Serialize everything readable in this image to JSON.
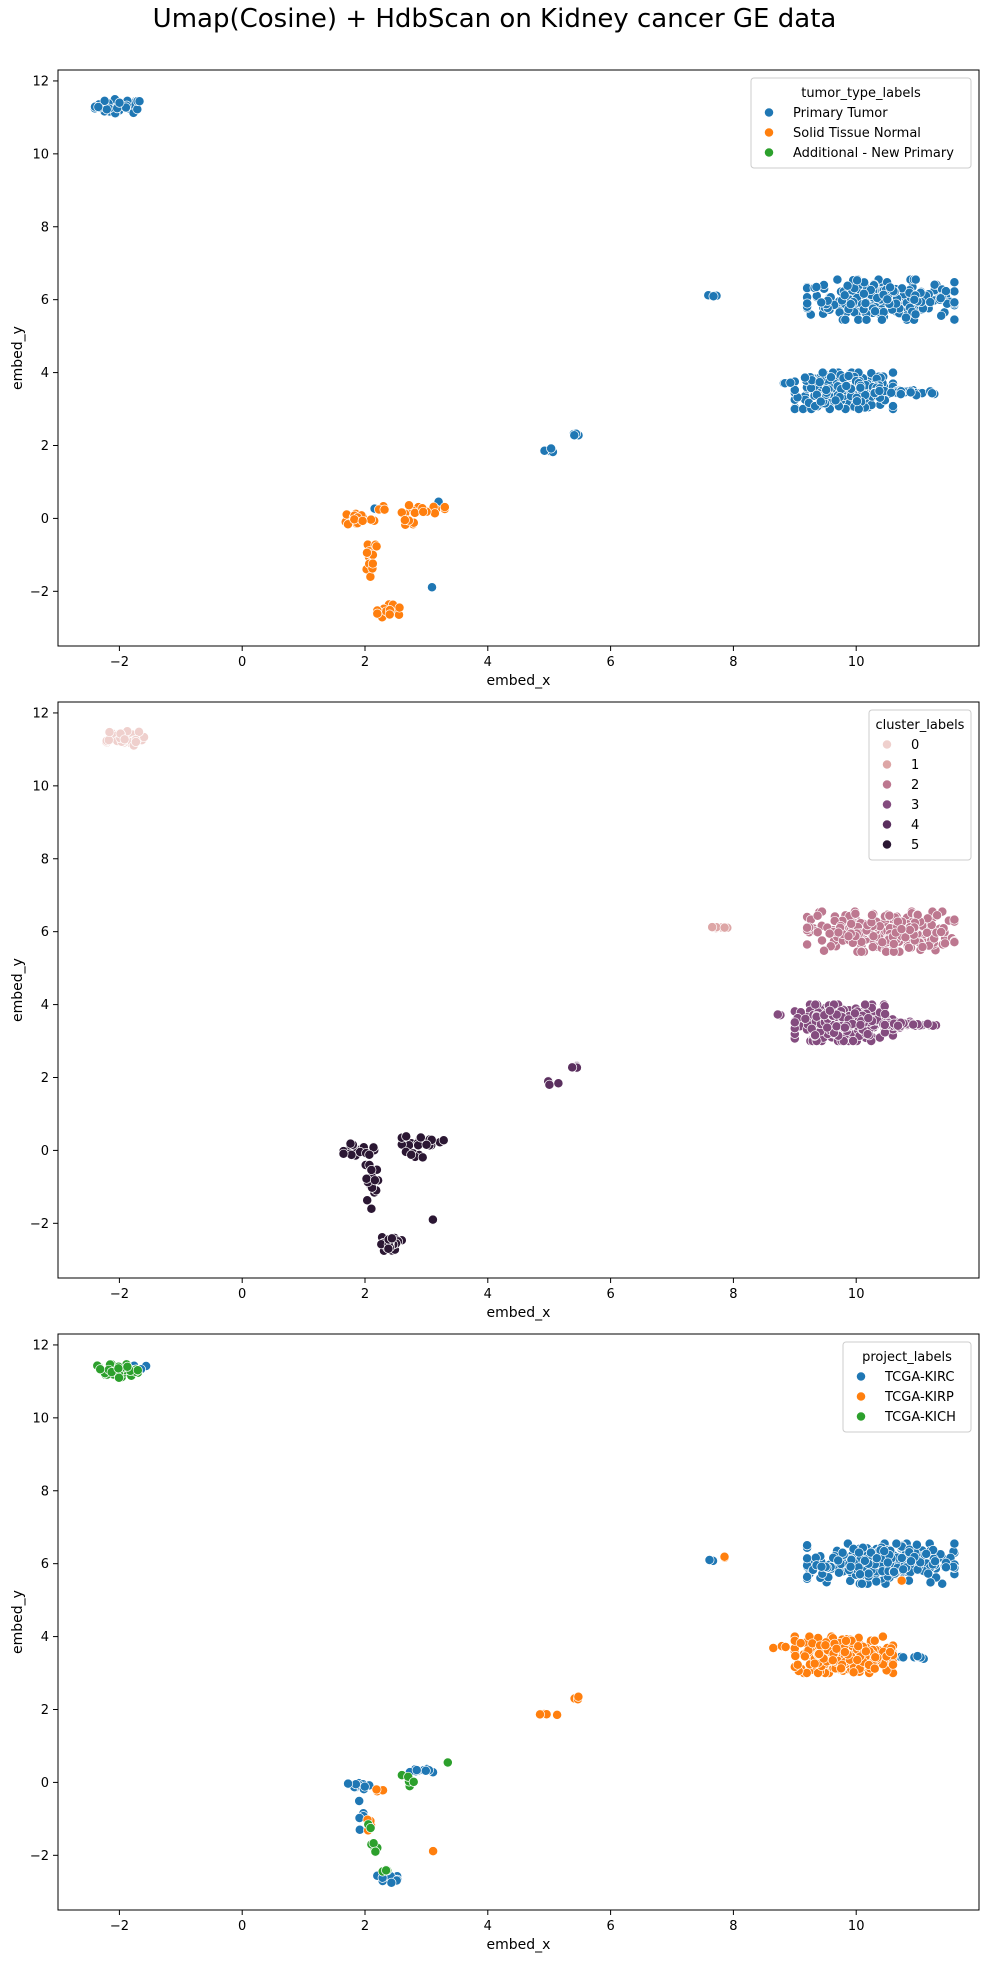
{
  "figure": {
    "title": "Umap(Cosine) + HdbScan on Kidney cancer GE data"
  },
  "chart_data": [
    {
      "type": "scatter",
      "title": "",
      "xlabel": "embed_x",
      "ylabel": "embed_y",
      "xlim": [
        -3.0,
        12.0
      ],
      "ylim": [
        -3.5,
        12.3
      ],
      "xticks": [
        -2,
        0,
        2,
        4,
        6,
        8,
        10
      ],
      "yticks": [
        -2,
        0,
        2,
        4,
        6,
        8,
        10,
        12
      ],
      "grid": false,
      "legend": {
        "title": "tumor_type_labels",
        "placement": "top-right"
      },
      "series": [
        {
          "name": "Primary Tumor",
          "color": "#1f77b4",
          "clusters": [
            {
              "cx": -2.0,
              "cy": 11.3,
              "rx": 0.4,
              "ry": 0.2,
              "n": 45
            },
            {
              "cx": 10.4,
              "cy": 6.0,
              "rx": 1.2,
              "ry": 0.55,
              "n": 260
            },
            {
              "cx": 9.8,
              "cy": 3.5,
              "rx": 0.8,
              "ry": 0.5,
              "n": 280
            },
            {
              "cx": 10.8,
              "cy": 3.45,
              "rx": 0.5,
              "ry": 0.08,
              "n": 30
            },
            {
              "cx": 7.7,
              "cy": 6.1,
              "rx": 0.2,
              "ry": 0.05,
              "n": 6
            },
            {
              "cx": 8.8,
              "cy": 3.72,
              "rx": 0.15,
              "ry": 0.04,
              "n": 3
            },
            {
              "cx": 5.0,
              "cy": 1.85,
              "rx": 0.15,
              "ry": 0.1,
              "n": 4
            },
            {
              "cx": 5.45,
              "cy": 2.3,
              "rx": 0.1,
              "ry": 0.05,
              "n": 4
            },
            {
              "cx": 3.1,
              "cy": -1.9,
              "rx": 0.03,
              "ry": 0.03,
              "n": 1
            },
            {
              "cx": 2.15,
              "cy": 0.28,
              "rx": 0.03,
              "ry": 0.03,
              "n": 1
            },
            {
              "cx": 3.2,
              "cy": 0.45,
              "rx": 0.03,
              "ry": 0.03,
              "n": 1
            }
          ]
        },
        {
          "name": "Solid Tissue Normal",
          "color": "#ff7f0e",
          "clusters": [
            {
              "cx": 1.9,
              "cy": 0.0,
              "rx": 0.25,
              "ry": 0.2,
              "n": 18
            },
            {
              "cx": 2.1,
              "cy": -1.0,
              "rx": 0.12,
              "ry": 0.6,
              "n": 15
            },
            {
              "cx": 2.4,
              "cy": -2.55,
              "rx": 0.2,
              "ry": 0.2,
              "n": 25
            },
            {
              "cx": 2.95,
              "cy": 0.25,
              "rx": 0.35,
              "ry": 0.15,
              "n": 20
            },
            {
              "cx": 2.8,
              "cy": -0.1,
              "rx": 0.15,
              "ry": 0.1,
              "n": 6
            },
            {
              "cx": 2.3,
              "cy": 0.3,
              "rx": 0.1,
              "ry": 0.06,
              "n": 3
            }
          ]
        },
        {
          "name": "Additional - New Primary",
          "color": "#2ca02c",
          "clusters": []
        }
      ]
    },
    {
      "type": "scatter",
      "title": "",
      "xlabel": "embed_x",
      "ylabel": "embed_y",
      "xlim": [
        -3.0,
        12.0
      ],
      "ylim": [
        -3.5,
        12.3
      ],
      "xticks": [
        -2,
        0,
        2,
        4,
        6,
        8,
        10
      ],
      "yticks": [
        -2,
        0,
        2,
        4,
        6,
        8,
        10,
        12
      ],
      "grid": false,
      "legend": {
        "title": "cluster_labels",
        "placement": "top-right"
      },
      "series": [
        {
          "name": "0",
          "color": "#efd0cd",
          "clusters": [
            {
              "cx": -2.0,
              "cy": 11.3,
              "rx": 0.4,
              "ry": 0.2,
              "n": 45
            }
          ]
        },
        {
          "name": "1",
          "color": "#dda6a6",
          "clusters": [
            {
              "cx": 7.7,
              "cy": 6.1,
              "rx": 0.2,
              "ry": 0.05,
              "n": 6
            }
          ]
        },
        {
          "name": "2",
          "color": "#bd7890",
          "clusters": [
            {
              "cx": 10.4,
              "cy": 6.0,
              "rx": 1.2,
              "ry": 0.55,
              "n": 260
            }
          ]
        },
        {
          "name": "3",
          "color": "#844c7f",
          "clusters": [
            {
              "cx": 9.8,
              "cy": 3.5,
              "rx": 0.8,
              "ry": 0.5,
              "n": 280
            },
            {
              "cx": 10.8,
              "cy": 3.45,
              "rx": 0.5,
              "ry": 0.08,
              "n": 30
            },
            {
              "cx": 8.8,
              "cy": 3.72,
              "rx": 0.15,
              "ry": 0.04,
              "n": 3
            }
          ]
        },
        {
          "name": "4",
          "color": "#5a2f5e",
          "clusters": [
            {
              "cx": 5.0,
              "cy": 1.85,
              "rx": 0.15,
              "ry": 0.1,
              "n": 4
            },
            {
              "cx": 5.45,
              "cy": 2.3,
              "rx": 0.1,
              "ry": 0.05,
              "n": 4
            }
          ]
        },
        {
          "name": "5",
          "color": "#2b1733",
          "clusters": [
            {
              "cx": 1.9,
              "cy": 0.0,
              "rx": 0.25,
              "ry": 0.2,
              "n": 18
            },
            {
              "cx": 2.1,
              "cy": -1.0,
              "rx": 0.12,
              "ry": 0.6,
              "n": 15
            },
            {
              "cx": 2.4,
              "cy": -2.55,
              "rx": 0.2,
              "ry": 0.2,
              "n": 25
            },
            {
              "cx": 2.95,
              "cy": 0.25,
              "rx": 0.35,
              "ry": 0.15,
              "n": 20
            },
            {
              "cx": 2.8,
              "cy": -0.1,
              "rx": 0.15,
              "ry": 0.1,
              "n": 6
            },
            {
              "cx": 3.1,
              "cy": -1.9,
              "rx": 0.03,
              "ry": 0.03,
              "n": 1
            }
          ]
        }
      ]
    },
    {
      "type": "scatter",
      "title": "",
      "xlabel": "embed_x",
      "ylabel": "embed_y",
      "xlim": [
        -3.0,
        12.0
      ],
      "ylim": [
        -3.5,
        12.3
      ],
      "xticks": [
        -2,
        0,
        2,
        4,
        6,
        8,
        10
      ],
      "yticks": [
        -2,
        0,
        2,
        4,
        6,
        8,
        10,
        12
      ],
      "grid": false,
      "legend": {
        "title": "project_labels",
        "placement": "top-right"
      },
      "series": [
        {
          "name": "TCGA-KIRC",
          "color": "#1f77b4",
          "clusters": [
            {
              "cx": -1.75,
              "cy": 11.35,
              "rx": 0.2,
              "ry": 0.1,
              "n": 8
            },
            {
              "cx": 10.4,
              "cy": 6.0,
              "rx": 1.2,
              "ry": 0.55,
              "n": 260
            },
            {
              "cx": 10.9,
              "cy": 3.45,
              "rx": 0.35,
              "ry": 0.06,
              "n": 12
            },
            {
              "cx": 7.65,
              "cy": 6.08,
              "rx": 0.1,
              "ry": 0.04,
              "n": 3
            },
            {
              "cx": 2.9,
              "cy": 0.35,
              "rx": 0.3,
              "ry": 0.08,
              "n": 10
            },
            {
              "cx": 1.9,
              "cy": -0.1,
              "rx": 0.2,
              "ry": 0.15,
              "n": 10
            },
            {
              "cx": 2.4,
              "cy": -2.6,
              "rx": 0.2,
              "ry": 0.15,
              "n": 15
            },
            {
              "cx": 2.0,
              "cy": -0.9,
              "rx": 0.1,
              "ry": 0.4,
              "n": 6
            }
          ]
        },
        {
          "name": "TCGA-KIRP",
          "color": "#ff7f0e",
          "clusters": [
            {
              "cx": 9.8,
              "cy": 3.5,
              "rx": 0.8,
              "ry": 0.5,
              "n": 280
            },
            {
              "cx": 8.8,
              "cy": 3.72,
              "rx": 0.15,
              "ry": 0.04,
              "n": 3
            },
            {
              "cx": 5.0,
              "cy": 1.85,
              "rx": 0.15,
              "ry": 0.1,
              "n": 4
            },
            {
              "cx": 5.45,
              "cy": 2.3,
              "rx": 0.1,
              "ry": 0.05,
              "n": 4
            },
            {
              "cx": 7.85,
              "cy": 6.18,
              "rx": 0.05,
              "ry": 0.03,
              "n": 2
            },
            {
              "cx": 3.1,
              "cy": -1.9,
              "rx": 0.03,
              "ry": 0.03,
              "n": 1
            },
            {
              "cx": 10.7,
              "cy": 5.55,
              "rx": 0.05,
              "ry": 0.05,
              "n": 1
            },
            {
              "cx": 2.1,
              "cy": -1.2,
              "rx": 0.1,
              "ry": 0.3,
              "n": 4
            },
            {
              "cx": 2.2,
              "cy": -0.2,
              "rx": 0.1,
              "ry": 0.08,
              "n": 3
            }
          ]
        },
        {
          "name": "TCGA-KICH",
          "color": "#2ca02c",
          "clusters": [
            {
              "cx": -2.05,
              "cy": 11.3,
              "rx": 0.35,
              "ry": 0.2,
              "n": 38
            },
            {
              "cx": 2.1,
              "cy": -1.6,
              "rx": 0.1,
              "ry": 0.6,
              "n": 7
            },
            {
              "cx": 2.7,
              "cy": 0.05,
              "rx": 0.1,
              "ry": 0.15,
              "n": 5
            },
            {
              "cx": 3.35,
              "cy": 0.52,
              "rx": 0.03,
              "ry": 0.03,
              "n": 1
            },
            {
              "cx": 2.3,
              "cy": -2.4,
              "rx": 0.1,
              "ry": 0.1,
              "n": 4
            }
          ]
        }
      ]
    }
  ]
}
